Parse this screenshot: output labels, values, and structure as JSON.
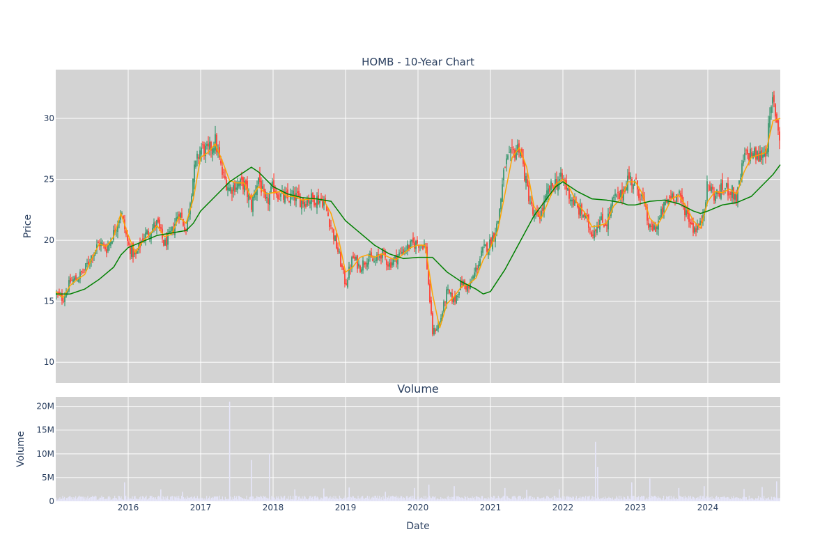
{
  "chart_data": [
    {
      "type": "candlestick",
      "title": "HOMB - 10-Year Chart",
      "ylabel": "Price",
      "xlabel": "",
      "ylim": [
        8.3,
        34.0
      ],
      "xlim": [
        2015.0,
        2025.0
      ],
      "y_ticks": [
        10,
        15,
        20,
        25,
        30
      ],
      "plot_background": "#d3d3d3",
      "grid": true,
      "colors": {
        "up": "#3d9970",
        "down": "#ff4136",
        "ma_short": "#ffa500",
        "ma_long": "#008000"
      },
      "price_close": [
        [
          2015.0,
          15.6
        ],
        [
          2015.1,
          15.2
        ],
        [
          2015.2,
          16.6
        ],
        [
          2015.3,
          16.9
        ],
        [
          2015.4,
          17.6
        ],
        [
          2015.5,
          18.8
        ],
        [
          2015.6,
          19.8
        ],
        [
          2015.7,
          19.3
        ],
        [
          2015.8,
          20.6
        ],
        [
          2015.9,
          22.4
        ],
        [
          2016.0,
          19.6
        ],
        [
          2016.1,
          18.6
        ],
        [
          2016.2,
          20.2
        ],
        [
          2016.3,
          20.8
        ],
        [
          2016.4,
          21.4
        ],
        [
          2016.5,
          19.6
        ],
        [
          2016.6,
          20.6
        ],
        [
          2016.7,
          22.4
        ],
        [
          2016.8,
          20.8
        ],
        [
          2016.9,
          25.4
        ],
        [
          2017.0,
          27.6
        ],
        [
          2017.1,
          27.2
        ],
        [
          2017.2,
          28.2
        ],
        [
          2017.3,
          25.4
        ],
        [
          2017.4,
          24.2
        ],
        [
          2017.5,
          24.6
        ],
        [
          2017.6,
          24.6
        ],
        [
          2017.7,
          22.8
        ],
        [
          2017.8,
          25.2
        ],
        [
          2017.9,
          22.8
        ],
        [
          2018.0,
          24.4
        ],
        [
          2018.1,
          23.6
        ],
        [
          2018.2,
          23.4
        ],
        [
          2018.3,
          23.6
        ],
        [
          2018.4,
          23.2
        ],
        [
          2018.5,
          23.4
        ],
        [
          2018.6,
          23.4
        ],
        [
          2018.7,
          23.2
        ],
        [
          2018.8,
          21.2
        ],
        [
          2018.9,
          19.0
        ],
        [
          2019.0,
          16.4
        ],
        [
          2019.1,
          18.6
        ],
        [
          2019.2,
          17.8
        ],
        [
          2019.3,
          18.6
        ],
        [
          2019.4,
          18.2
        ],
        [
          2019.5,
          19.0
        ],
        [
          2019.6,
          18.0
        ],
        [
          2019.7,
          18.6
        ],
        [
          2019.8,
          19.2
        ],
        [
          2019.9,
          19.6
        ],
        [
          2020.0,
          19.8
        ],
        [
          2020.1,
          19.6
        ],
        [
          2020.2,
          12.4
        ],
        [
          2020.3,
          13.2
        ],
        [
          2020.4,
          15.8
        ],
        [
          2020.5,
          15.0
        ],
        [
          2020.6,
          16.6
        ],
        [
          2020.7,
          16.0
        ],
        [
          2020.8,
          17.6
        ],
        [
          2020.9,
          19.2
        ],
        [
          2021.0,
          19.8
        ],
        [
          2021.1,
          21.4
        ],
        [
          2021.2,
          26.2
        ],
        [
          2021.3,
          27.0
        ],
        [
          2021.4,
          27.8
        ],
        [
          2021.5,
          24.4
        ],
        [
          2021.6,
          21.8
        ],
        [
          2021.7,
          22.2
        ],
        [
          2021.8,
          24.0
        ],
        [
          2021.9,
          24.8
        ],
        [
          2022.0,
          25.0
        ],
        [
          2022.1,
          23.6
        ],
        [
          2022.2,
          22.6
        ],
        [
          2022.3,
          22.0
        ],
        [
          2022.4,
          20.6
        ],
        [
          2022.5,
          21.6
        ],
        [
          2022.6,
          21.4
        ],
        [
          2022.7,
          23.4
        ],
        [
          2022.8,
          23.6
        ],
        [
          2022.9,
          25.2
        ],
        [
          2023.0,
          24.6
        ],
        [
          2023.1,
          23.4
        ],
        [
          2023.2,
          20.8
        ],
        [
          2023.3,
          21.2
        ],
        [
          2023.4,
          22.8
        ],
        [
          2023.5,
          23.8
        ],
        [
          2023.6,
          23.6
        ],
        [
          2023.7,
          22.4
        ],
        [
          2023.8,
          21.0
        ],
        [
          2023.9,
          21.2
        ],
        [
          2024.0,
          24.6
        ],
        [
          2024.1,
          23.6
        ],
        [
          2024.2,
          24.2
        ],
        [
          2024.3,
          24.2
        ],
        [
          2024.4,
          23.4
        ],
        [
          2024.5,
          26.8
        ],
        [
          2024.6,
          27.2
        ],
        [
          2024.7,
          26.8
        ],
        [
          2024.8,
          27.4
        ],
        [
          2024.9,
          31.6
        ],
        [
          2025.0,
          28.2
        ]
      ],
      "ma_short": [
        [
          2015.0,
          15.8
        ],
        [
          2015.1,
          15.3
        ],
        [
          2015.2,
          16.3
        ],
        [
          2015.3,
          16.8
        ],
        [
          2015.4,
          17.2
        ],
        [
          2015.5,
          18.5
        ],
        [
          2015.6,
          19.7
        ],
        [
          2015.7,
          19.5
        ],
        [
          2015.8,
          20.3
        ],
        [
          2015.9,
          22.2
        ],
        [
          2016.0,
          20.4
        ],
        [
          2016.1,
          19.0
        ],
        [
          2016.2,
          19.9
        ],
        [
          2016.3,
          20.5
        ],
        [
          2016.4,
          21.2
        ],
        [
          2016.5,
          20.3
        ],
        [
          2016.6,
          20.5
        ],
        [
          2016.7,
          21.9
        ],
        [
          2016.8,
          21.4
        ],
        [
          2016.9,
          23.4
        ],
        [
          2017.0,
          26.8
        ],
        [
          2017.1,
          27.2
        ],
        [
          2017.2,
          27.9
        ],
        [
          2017.3,
          26.5
        ],
        [
          2017.4,
          24.9
        ],
        [
          2017.5,
          24.7
        ],
        [
          2017.6,
          24.7
        ],
        [
          2017.7,
          23.5
        ],
        [
          2017.8,
          24.4
        ],
        [
          2017.9,
          23.8
        ],
        [
          2018.0,
          23.9
        ],
        [
          2018.1,
          24.0
        ],
        [
          2018.2,
          23.6
        ],
        [
          2018.3,
          23.6
        ],
        [
          2018.4,
          23.3
        ],
        [
          2018.5,
          23.4
        ],
        [
          2018.6,
          23.4
        ],
        [
          2018.7,
          23.3
        ],
        [
          2018.8,
          22.2
        ],
        [
          2018.9,
          20.2
        ],
        [
          2019.0,
          17.4
        ],
        [
          2019.1,
          17.8
        ],
        [
          2019.2,
          18.6
        ],
        [
          2019.3,
          18.8
        ],
        [
          2019.4,
          18.6
        ],
        [
          2019.5,
          18.9
        ],
        [
          2019.6,
          18.6
        ],
        [
          2019.7,
          18.4
        ],
        [
          2019.8,
          18.9
        ],
        [
          2019.9,
          19.4
        ],
        [
          2020.0,
          19.6
        ],
        [
          2020.1,
          19.6
        ],
        [
          2020.2,
          15.6
        ],
        [
          2020.3,
          12.8
        ],
        [
          2020.4,
          14.8
        ],
        [
          2020.5,
          15.4
        ],
        [
          2020.6,
          16.2
        ],
        [
          2020.7,
          16.4
        ],
        [
          2020.8,
          16.9
        ],
        [
          2020.9,
          18.4
        ],
        [
          2021.0,
          19.4
        ],
        [
          2021.1,
          20.8
        ],
        [
          2021.2,
          23.8
        ],
        [
          2021.3,
          26.8
        ],
        [
          2021.4,
          27.6
        ],
        [
          2021.5,
          26.0
        ],
        [
          2021.6,
          22.8
        ],
        [
          2021.7,
          21.8
        ],
        [
          2021.8,
          23.2
        ],
        [
          2021.9,
          24.6
        ],
        [
          2022.0,
          25.0
        ],
        [
          2022.1,
          24.2
        ],
        [
          2022.2,
          23.0
        ],
        [
          2022.3,
          22.3
        ],
        [
          2022.4,
          21.1
        ],
        [
          2022.5,
          21.2
        ],
        [
          2022.6,
          21.4
        ],
        [
          2022.7,
          22.8
        ],
        [
          2022.8,
          23.4
        ],
        [
          2022.9,
          24.8
        ],
        [
          2023.0,
          24.8
        ],
        [
          2023.1,
          23.8
        ],
        [
          2023.2,
          21.8
        ],
        [
          2023.3,
          21.2
        ],
        [
          2023.4,
          22.2
        ],
        [
          2023.5,
          23.4
        ],
        [
          2023.6,
          23.7
        ],
        [
          2023.7,
          22.8
        ],
        [
          2023.8,
          21.6
        ],
        [
          2023.9,
          21.0
        ],
        [
          2024.0,
          23.2
        ],
        [
          2024.1,
          24.0
        ],
        [
          2024.2,
          23.9
        ],
        [
          2024.3,
          24.2
        ],
        [
          2024.4,
          23.8
        ],
        [
          2024.5,
          25.6
        ],
        [
          2024.6,
          26.8
        ],
        [
          2024.7,
          27.0
        ],
        [
          2024.8,
          27.2
        ],
        [
          2024.9,
          29.8
        ],
        [
          2025.0,
          30.0
        ]
      ],
      "ma_long": [
        [
          2015.0,
          15.6
        ],
        [
          2015.2,
          15.6
        ],
        [
          2015.4,
          16.0
        ],
        [
          2015.6,
          16.8
        ],
        [
          2015.8,
          17.8
        ],
        [
          2015.9,
          18.8
        ],
        [
          2016.0,
          19.4
        ],
        [
          2016.2,
          19.9
        ],
        [
          2016.4,
          20.4
        ],
        [
          2016.6,
          20.6
        ],
        [
          2016.8,
          20.8
        ],
        [
          2016.9,
          21.4
        ],
        [
          2017.0,
          22.4
        ],
        [
          2017.2,
          23.6
        ],
        [
          2017.4,
          24.8
        ],
        [
          2017.6,
          25.6
        ],
        [
          2017.7,
          26.0
        ],
        [
          2017.8,
          25.6
        ],
        [
          2018.0,
          24.4
        ],
        [
          2018.2,
          23.8
        ],
        [
          2018.4,
          23.5
        ],
        [
          2018.6,
          23.4
        ],
        [
          2018.8,
          23.2
        ],
        [
          2018.9,
          22.4
        ],
        [
          2019.0,
          21.6
        ],
        [
          2019.2,
          20.6
        ],
        [
          2019.4,
          19.6
        ],
        [
          2019.6,
          18.9
        ],
        [
          2019.8,
          18.5
        ],
        [
          2020.0,
          18.6
        ],
        [
          2020.2,
          18.6
        ],
        [
          2020.4,
          17.4
        ],
        [
          2020.6,
          16.6
        ],
        [
          2020.8,
          16.0
        ],
        [
          2020.9,
          15.6
        ],
        [
          2021.0,
          15.8
        ],
        [
          2021.2,
          17.6
        ],
        [
          2021.4,
          19.8
        ],
        [
          2021.6,
          22.0
        ],
        [
          2021.8,
          23.6
        ],
        [
          2021.9,
          24.4
        ],
        [
          2022.0,
          24.8
        ],
        [
          2022.2,
          24.0
        ],
        [
          2022.4,
          23.4
        ],
        [
          2022.6,
          23.3
        ],
        [
          2022.8,
          23.1
        ],
        [
          2022.9,
          22.9
        ],
        [
          2023.0,
          22.9
        ],
        [
          2023.2,
          23.2
        ],
        [
          2023.4,
          23.3
        ],
        [
          2023.6,
          23.0
        ],
        [
          2023.8,
          22.4
        ],
        [
          2023.9,
          22.2
        ],
        [
          2024.0,
          22.4
        ],
        [
          2024.2,
          22.9
        ],
        [
          2024.4,
          23.1
        ],
        [
          2024.6,
          23.6
        ],
        [
          2024.8,
          24.8
        ],
        [
          2024.9,
          25.4
        ],
        [
          2025.0,
          26.2
        ]
      ]
    },
    {
      "type": "bar",
      "title": "Volume",
      "ylabel": "Volume",
      "xlabel": "Date",
      "ylim": [
        0,
        22000000
      ],
      "xlim": [
        2015.0,
        2025.0
      ],
      "y_ticks": [
        0,
        5000000,
        10000000,
        15000000,
        20000000
      ],
      "y_tick_labels": [
        "0",
        "5M",
        "10M",
        "15M",
        "20M"
      ],
      "x_ticks": [
        2016,
        2017,
        2018,
        2019,
        2020,
        2021,
        2022,
        2023,
        2024
      ],
      "x_tick_labels": [
        "2016",
        "2017",
        "2018",
        "2019",
        "2020",
        "2021",
        "2022",
        "2023",
        "2024"
      ],
      "plot_background": "#d3d3d3",
      "bar_color": "#e6e6fa",
      "baseline_volume": 800000,
      "spikes": [
        [
          2015.95,
          4000000
        ],
        [
          2016.45,
          2500000
        ],
        [
          2016.75,
          2000000
        ],
        [
          2017.4,
          21000000
        ],
        [
          2017.7,
          8700000
        ],
        [
          2017.95,
          10000000
        ],
        [
          2018.3,
          2500000
        ],
        [
          2018.7,
          2700000
        ],
        [
          2019.05,
          2900000
        ],
        [
          2019.55,
          2000000
        ],
        [
          2019.95,
          2800000
        ],
        [
          2020.15,
          3500000
        ],
        [
          2020.5,
          3200000
        ],
        [
          2021.2,
          2800000
        ],
        [
          2021.5,
          2400000
        ],
        [
          2021.95,
          2500000
        ],
        [
          2022.45,
          12500000
        ],
        [
          2022.48,
          7200000
        ],
        [
          2022.95,
          4000000
        ],
        [
          2023.2,
          4800000
        ],
        [
          2023.6,
          2800000
        ],
        [
          2023.95,
          3200000
        ],
        [
          2024.5,
          2600000
        ],
        [
          2024.75,
          3000000
        ],
        [
          2024.95,
          4200000
        ]
      ]
    }
  ]
}
